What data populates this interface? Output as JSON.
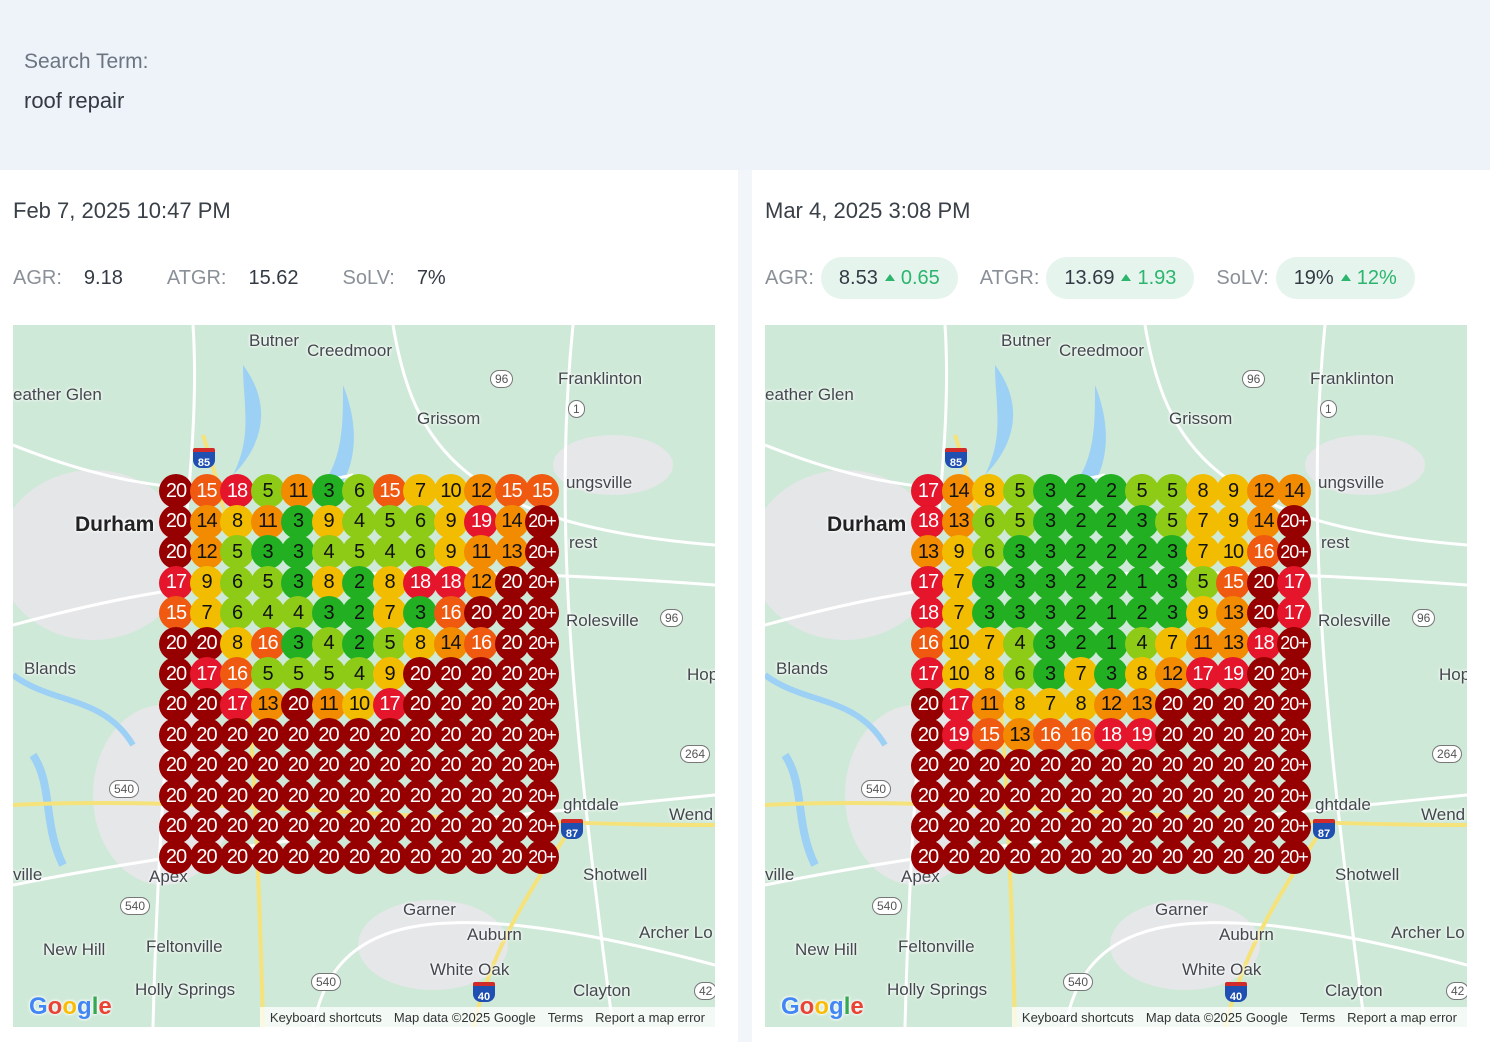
{
  "search": {
    "label": "Search Term:",
    "value": "roof repair"
  },
  "colors": {
    "rank_1_3": "#22b022",
    "rank_4_6": "#8dcb16",
    "rank_7_10": "#f2bd00",
    "rank_11_14": "#f38b00",
    "rank_15_16": "#f05a10",
    "rank_17_19": "#e5152c",
    "rank_20": "#960000",
    "delta_positive": "#2bb56d"
  },
  "scans": [
    {
      "date": "Feb 7, 2025 10:47 PM",
      "metrics": [
        {
          "label": "AGR:",
          "value": "9.18",
          "delta": null
        },
        {
          "label": "ATGR:",
          "value": "15.62",
          "delta": null
        },
        {
          "label": "SoLV:",
          "value": "7%",
          "delta": null
        }
      ],
      "grid": [
        [
          "20",
          "15",
          "18",
          "5",
          "11",
          "3",
          "6",
          "15",
          "7",
          "10",
          "12",
          "15",
          "15"
        ],
        [
          "20",
          "14",
          "8",
          "11",
          "3",
          "9",
          "4",
          "5",
          "6",
          "9",
          "19",
          "14",
          "20+"
        ],
        [
          "20",
          "12",
          "5",
          "3",
          "3",
          "4",
          "5",
          "4",
          "6",
          "9",
          "11",
          "13",
          "20+"
        ],
        [
          "17",
          "9",
          "6",
          "5",
          "3",
          "8",
          "2",
          "8",
          "18",
          "18",
          "12",
          "20",
          "20+"
        ],
        [
          "15",
          "7",
          "6",
          "4",
          "4",
          "3",
          "2",
          "7",
          "3",
          "16",
          "20",
          "20",
          "20+"
        ],
        [
          "20",
          "20",
          "8",
          "16",
          "3",
          "4",
          "2",
          "5",
          "8",
          "14",
          "16",
          "20",
          "20+"
        ],
        [
          "20",
          "17",
          "16",
          "5",
          "5",
          "5",
          "4",
          "9",
          "20",
          "20",
          "20",
          "20",
          "20+"
        ],
        [
          "20",
          "20",
          "17",
          "13",
          "20",
          "11",
          "10",
          "17",
          "20",
          "20",
          "20",
          "20",
          "20+"
        ],
        [
          "20",
          "20",
          "20",
          "20",
          "20",
          "20",
          "20",
          "20",
          "20",
          "20",
          "20",
          "20",
          "20+"
        ],
        [
          "20",
          "20",
          "20",
          "20",
          "20",
          "20",
          "20",
          "20",
          "20",
          "20",
          "20",
          "20",
          "20+"
        ],
        [
          "20",
          "20",
          "20",
          "20",
          "20",
          "20",
          "20",
          "20",
          "20",
          "20",
          "20",
          "20",
          "20+"
        ],
        [
          "20",
          "20",
          "20",
          "20",
          "20",
          "20",
          "20",
          "20",
          "20",
          "20",
          "20",
          "20",
          "20+"
        ],
        [
          "20",
          "20",
          "20",
          "20",
          "20",
          "20",
          "20",
          "20",
          "20",
          "20",
          "20",
          "20",
          "20+"
        ]
      ]
    },
    {
      "date": "Mar 4, 2025 3:08 PM",
      "metrics": [
        {
          "label": "AGR:",
          "value": "8.53",
          "delta": "0.65"
        },
        {
          "label": "ATGR:",
          "value": "13.69",
          "delta": "1.93"
        },
        {
          "label": "SoLV:",
          "value": "19%",
          "delta": "12%"
        }
      ],
      "grid": [
        [
          "17",
          "14",
          "8",
          "5",
          "3",
          "2",
          "2",
          "5",
          "5",
          "8",
          "9",
          "12",
          "14"
        ],
        [
          "18",
          "13",
          "6",
          "5",
          "3",
          "2",
          "2",
          "3",
          "5",
          "7",
          "9",
          "14",
          "20+"
        ],
        [
          "13",
          "9",
          "6",
          "3",
          "3",
          "2",
          "2",
          "2",
          "3",
          "7",
          "10",
          "16",
          "20+"
        ],
        [
          "17",
          "7",
          "3",
          "3",
          "3",
          "2",
          "2",
          "1",
          "3",
          "5",
          "15",
          "20",
          "17"
        ],
        [
          "18",
          "7",
          "3",
          "3",
          "3",
          "2",
          "1",
          "2",
          "3",
          "9",
          "13",
          "20",
          "17"
        ],
        [
          "16",
          "10",
          "7",
          "4",
          "3",
          "2",
          "1",
          "4",
          "7",
          "11",
          "13",
          "18",
          "20+"
        ],
        [
          "17",
          "10",
          "8",
          "6",
          "3",
          "7",
          "3",
          "8",
          "12",
          "17",
          "19",
          "20",
          "20+"
        ],
        [
          "20",
          "17",
          "11",
          "8",
          "7",
          "8",
          "12",
          "13",
          "20",
          "20",
          "20",
          "20",
          "20+"
        ],
        [
          "20",
          "19",
          "15",
          "13",
          "16",
          "16",
          "18",
          "19",
          "20",
          "20",
          "20",
          "20",
          "20+"
        ],
        [
          "20",
          "20",
          "20",
          "20",
          "20",
          "20",
          "20",
          "20",
          "20",
          "20",
          "20",
          "20",
          "20+"
        ],
        [
          "20",
          "20",
          "20",
          "20",
          "20",
          "20",
          "20",
          "20",
          "20",
          "20",
          "20",
          "20",
          "20+"
        ],
        [
          "20",
          "20",
          "20",
          "20",
          "20",
          "20",
          "20",
          "20",
          "20",
          "20",
          "20",
          "20",
          "20+"
        ],
        [
          "20",
          "20",
          "20",
          "20",
          "20",
          "20",
          "20",
          "20",
          "20",
          "20",
          "20",
          "20",
          "20+"
        ]
      ]
    }
  ],
  "map": {
    "places": [
      "Butner",
      "Creedmoor",
      "Franklinton",
      "eather Glen",
      "Grissom",
      "Durham",
      "ungsville",
      "rest",
      "Rolesville",
      "Blands",
      "Hop",
      "ghtdale",
      "Wend",
      "ville",
      "Shotwell",
      "Apex",
      "Garner",
      "Auburn",
      "Archer Lo",
      "New Hill",
      "Feltonville",
      "White Oak",
      "Holly Springs",
      "Clayton"
    ],
    "shields": [
      "96",
      "1",
      "96",
      "264",
      "540",
      "540",
      "540",
      "42"
    ],
    "interstates": [
      "85",
      "87",
      "40"
    ],
    "footer": [
      "Keyboard shortcuts",
      "Map data ©2025 Google",
      "Terms",
      "Report a map error"
    ],
    "logo": "Google"
  }
}
